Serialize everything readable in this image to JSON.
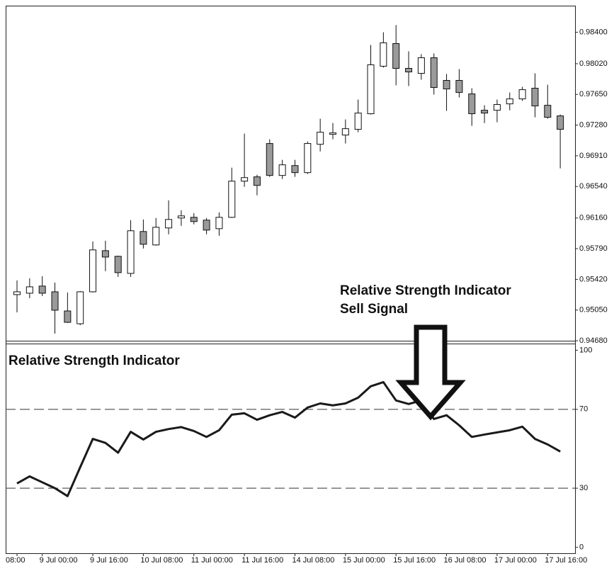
{
  "chart_data": [
    {
      "type": "candlestick",
      "categories": [
        "08:00",
        null,
        "9 Jul 00:00",
        null,
        null,
        null,
        "9 Jul 16:00",
        null,
        null,
        null,
        "10 Jul 08:00",
        null,
        null,
        null,
        "11 Jul 00:00",
        null,
        null,
        null,
        "11 Jul 16:00",
        null,
        null,
        null,
        "14 Jul 08:00",
        null,
        null,
        null,
        "15 Jul 00:00",
        null,
        null,
        null,
        "15 Jul 16:00",
        null,
        null,
        null,
        "16 Jul 08:00",
        null,
        null,
        null,
        "17 Jul 00:00",
        null,
        null,
        null,
        "17 Jul 16:00",
        null
      ],
      "open": [
        0.95236,
        0.95253,
        0.95339,
        0.9527,
        0.95039,
        0.94885,
        0.9527,
        0.95766,
        0.95698,
        0.95492,
        0.95997,
        0.95835,
        0.9604,
        0.9616,
        0.96168,
        0.96134,
        0.96031,
        0.96168,
        0.96604,
        0.96656,
        0.97058,
        0.96673,
        0.96792,
        0.96707,
        0.97049,
        0.97169,
        0.9716,
        0.97229,
        0.97417,
        0.9799,
        0.98263,
        0.97964,
        0.97904,
        0.98092,
        0.97819,
        0.97819,
        0.97656,
        0.97459,
        0.97459,
        0.97536,
        0.97596,
        0.97725,
        0.97519,
        0.97391
      ],
      "high": [
        0.95407,
        0.95433,
        0.95458,
        0.95381,
        0.95262,
        0.95279,
        0.95877,
        0.95886,
        0.95706,
        0.96134,
        0.96142,
        0.9616,
        0.96373,
        0.96254,
        0.96219,
        0.9616,
        0.96228,
        0.96767,
        0.97177,
        0.96681,
        0.97109,
        0.96861,
        0.96861,
        0.97083,
        0.97357,
        0.97305,
        0.97348,
        0.97588,
        0.98246,
        0.984,
        0.98486,
        0.98169,
        0.98135,
        0.98144,
        0.97896,
        0.97955,
        0.97725,
        0.97519,
        0.97588,
        0.97673,
        0.97742,
        0.97904,
        0.97767,
        0.97408
      ],
      "low": [
        0.95022,
        0.95193,
        0.95219,
        0.94766,
        0.94894,
        0.94868,
        0.95262,
        0.95518,
        0.9545,
        0.9545,
        0.95792,
        0.95826,
        0.95963,
        0.96065,
        0.96083,
        0.95963,
        0.95946,
        0.9616,
        0.96536,
        0.96433,
        0.96656,
        0.9663,
        0.96656,
        0.9669,
        0.96963,
        0.97109,
        0.97058,
        0.97194,
        0.97408,
        0.97973,
        0.97759,
        0.9775,
        0.97827,
        0.97648,
        0.97451,
        0.97613,
        0.97271,
        0.97305,
        0.97314,
        0.97459,
        0.97571,
        0.97374,
        0.97357,
        0.96758
      ],
      "close": [
        0.9527,
        0.9533,
        0.95253,
        0.95048,
        0.94902,
        0.9527,
        0.95775,
        0.95689,
        0.95501,
        0.96006,
        0.95843,
        0.96048,
        0.96142,
        0.96185,
        0.96117,
        0.96014,
        0.96168,
        0.96604,
        0.96647,
        0.96553,
        0.96673,
        0.96801,
        0.96707,
        0.97058,
        0.97194,
        0.97186,
        0.97237,
        0.97425,
        0.98007,
        0.98272,
        0.97964,
        0.97921,
        0.98092,
        0.97733,
        0.97716,
        0.97673,
        0.97417,
        0.97425,
        0.97528,
        0.97596,
        0.97707,
        0.97511,
        0.97374,
        0.97229
      ],
      "up_color": "#ffffff",
      "down_color": "#9a9a9a",
      "ylim": [
        0.9468,
        0.9872
      ],
      "yticks": [
        {
          "value": 0.9468,
          "label": "0.94680"
        },
        {
          "value": 0.9505,
          "label": "0.95050"
        },
        {
          "value": 0.9542,
          "label": "0.95420"
        },
        {
          "value": 0.9579,
          "label": "0.95790"
        },
        {
          "value": 0.9616,
          "label": "0.96160"
        },
        {
          "value": 0.9654,
          "label": "0.96540"
        },
        {
          "value": 0.9691,
          "label": "0.96910"
        },
        {
          "value": 0.9728,
          "label": "0.97280"
        },
        {
          "value": 0.9765,
          "label": "0.97650"
        },
        {
          "value": 0.9802,
          "label": "0.98020"
        },
        {
          "value": 0.984,
          "label": "0.98400"
        }
      ],
      "annotation": [
        "Relative Strength Indicator",
        "Sell Signal"
      ]
    },
    {
      "type": "line",
      "title": "Relative Strength Indicator",
      "values": [
        32.4,
        36,
        33,
        30,
        26,
        40.6,
        55,
        53,
        48,
        58.6,
        54.7,
        58.6,
        60,
        61,
        59,
        56,
        59.4,
        67.3,
        68,
        64.7,
        67,
        68.7,
        65.8,
        70.9,
        73,
        72,
        73,
        75.9,
        81.7,
        83.8,
        74.5,
        72.7,
        74.5,
        65.1,
        67,
        61.9,
        56,
        57.2,
        58.3,
        59.4,
        61.2,
        55,
        52.2,
        48.6
      ],
      "color": "#1a1a1a",
      "ylim": [
        -3,
        103
      ],
      "yticks": [
        0,
        30,
        70,
        100
      ],
      "levels": [
        70,
        30
      ]
    }
  ]
}
